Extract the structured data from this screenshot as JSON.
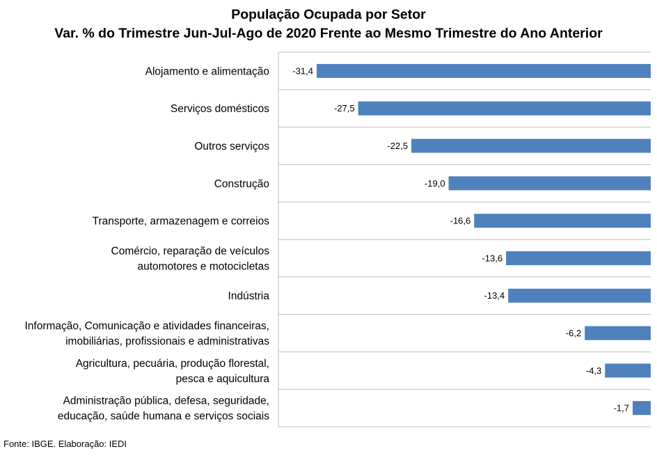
{
  "chart_data": {
    "type": "bar",
    "orientation": "horizontal",
    "title": "População Ocupada por Setor",
    "subtitle": "Var. % do Trimestre Jun-Jul-Ago de 2020 Frente ao Mesmo Trimestre do Ano Anterior",
    "categories": [
      [
        "Alojamento e alimentação"
      ],
      [
        "Serviços domésticos"
      ],
      [
        "Outros serviços"
      ],
      [
        "Construção"
      ],
      [
        "Transporte, armazenagem e correios"
      ],
      [
        "Comércio, reparação de veículos",
        "automotores e motocicletas"
      ],
      [
        "Indústria"
      ],
      [
        "Informação, Comunicação e atividades financeiras,",
        "imobiliárias, profissionais e administrativas"
      ],
      [
        "Agricultura, pecuária, produção florestal,",
        "pesca e aquicultura"
      ],
      [
        "Administração pública, defesa, seguridade,",
        "educação, saúde humana e serviços sociais"
      ]
    ],
    "values": [
      -31.4,
      -27.5,
      -22.5,
      -19.0,
      -16.6,
      -13.6,
      -13.4,
      -6.2,
      -4.3,
      -1.7
    ],
    "data_labels": [
      "-31,4",
      "-27,5",
      "-22,5",
      "-19,0",
      "-16,6",
      "-13,6",
      "-13,4",
      "-6,2",
      "-4,3",
      "-1,7"
    ],
    "xlim": [
      -35,
      0
    ],
    "grid": "horizontal separators between categories",
    "legend": "none",
    "bar_color": "#4f81bd",
    "grid_color": "#bfbfbf"
  },
  "source": "Fonte: IBGE. Elaboração: IEDI"
}
